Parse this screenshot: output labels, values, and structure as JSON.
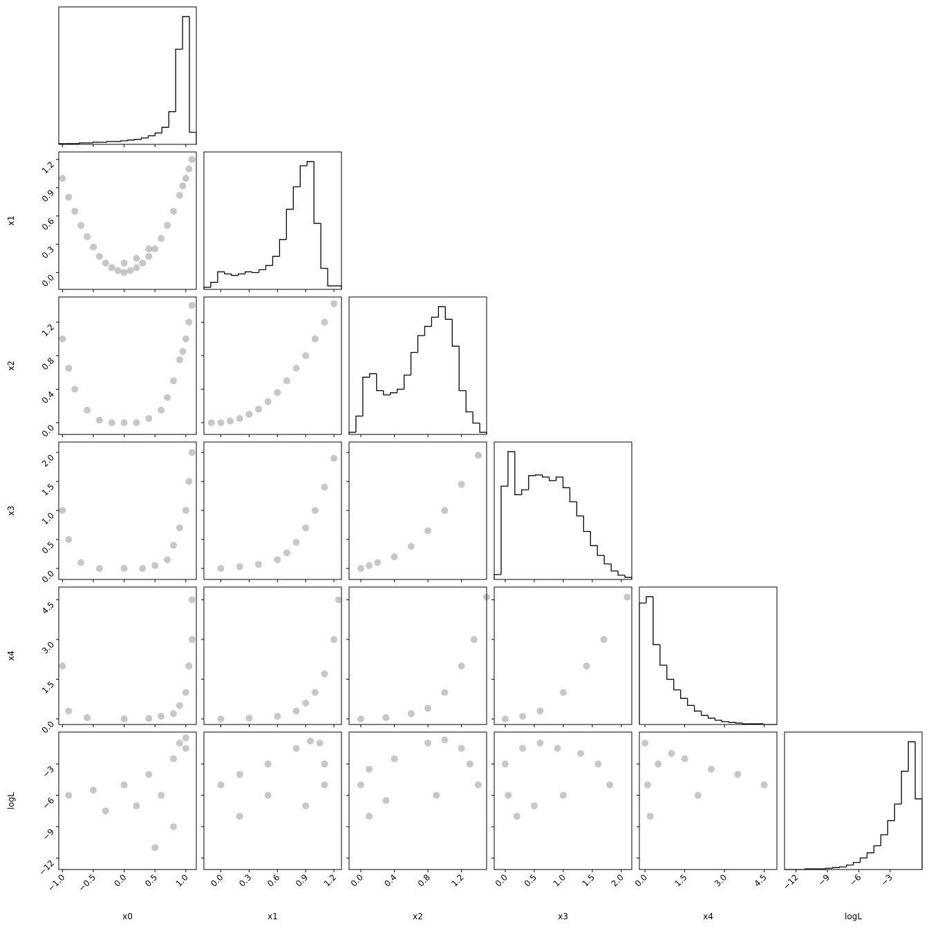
{
  "chart_data": {
    "type": "corner",
    "variables": [
      {
        "name": "x0",
        "lim": [
          -1.06,
          1.17
        ],
        "ticks": [
          {
            "value": -1,
            "label": "−1.0"
          },
          {
            "value": -0.5,
            "label": "−0.5"
          },
          {
            "value": 0,
            "label": "0.0"
          },
          {
            "value": 0.5,
            "label": "0.5"
          },
          {
            "value": 1,
            "label": "1.0"
          }
        ]
      },
      {
        "name": "x1",
        "lim": [
          -0.18,
          1.28
        ],
        "ticks": [
          {
            "value": 0,
            "label": "0.0"
          },
          0.3,
          0.6,
          0.9,
          1.2
        ]
      },
      {
        "name": "x2",
        "lim": [
          -0.14,
          1.5
        ],
        "ticks": [
          {
            "value": 0,
            "label": "0.0"
          },
          0.4,
          0.8,
          1.2
        ]
      },
      {
        "name": "x3",
        "lim": [
          -0.19,
          2.18
        ],
        "ticks": [
          {
            "value": 0,
            "label": "0.0"
          },
          0.5,
          {
            "value": 1,
            "label": "1.0"
          },
          1.5,
          {
            "value": 2,
            "label": "2.0"
          }
        ]
      },
      {
        "name": "x4",
        "lim": [
          -0.21,
          4.98
        ],
        "ticks": [
          {
            "value": 0,
            "label": "0.0"
          },
          1.5,
          {
            "value": 3,
            "label": "3.0"
          },
          4.5
        ]
      },
      {
        "name": "logL",
        "lim": [
          -13.1,
          0.05
        ],
        "ticks": [
          {
            "value": -12,
            "label": "−12"
          },
          {
            "value": -9,
            "label": "−9"
          },
          {
            "value": -6,
            "label": "−6"
          },
          {
            "value": -3,
            "label": "−3"
          }
        ]
      }
    ],
    "histograms": [
      {
        "bins": [
          -1.06,
          -0.9485,
          -0.837,
          -0.7255,
          -0.614,
          -0.5025,
          -0.391,
          -0.2795,
          -0.168,
          -0.0565,
          0.055,
          0.1665,
          0.278,
          0.3895,
          0.501,
          0.6125,
          0.724,
          0.8355,
          0.947,
          1.0585,
          1.17
        ],
        "values": [
          1,
          1,
          1,
          2,
          2,
          3,
          3,
          4,
          4,
          5,
          6,
          7,
          9,
          12,
          16,
          24,
          46,
          134,
          180,
          17
        ]
      },
      {
        "bins": [
          -0.18,
          -0.107,
          -0.034,
          0.039,
          0.112,
          0.185,
          0.258,
          0.331,
          0.404,
          0.477,
          0.55,
          0.623,
          0.696,
          0.769,
          0.842,
          0.915,
          0.988,
          1.061,
          1.134,
          1.207,
          1.28
        ],
        "values": [
          3,
          10,
          25,
          22,
          20,
          22,
          25,
          24,
          28,
          34,
          47,
          71,
          114,
          146,
          176,
          182,
          94,
          30,
          5,
          5
        ]
      },
      {
        "bins": [
          -0.14,
          -0.058,
          0.024,
          0.106,
          0.188,
          0.27,
          0.352,
          0.434,
          0.516,
          0.598,
          0.68,
          0.762,
          0.844,
          0.926,
          1.008,
          1.09,
          1.172,
          1.254,
          1.336,
          1.418,
          1.5
        ],
        "values": [
          3,
          26,
          81,
          86,
          62,
          56,
          59,
          64,
          84,
          116,
          140,
          153,
          166,
          181,
          163,
          125,
          62,
          32,
          16,
          3
        ]
      },
      {
        "bins": [
          -0.19,
          -0.0715,
          0.047,
          0.1655,
          0.284,
          0.4025,
          0.521,
          0.6395,
          0.758,
          0.8765,
          0.995,
          1.1135,
          1.232,
          1.3505,
          1.469,
          1.5875,
          1.706,
          1.8245,
          1.943,
          2.0615,
          2.18
        ],
        "values": [
          7,
          132,
          181,
          120,
          127,
          147,
          148,
          145,
          140,
          145,
          130,
          110,
          90,
          68,
          48,
          34,
          22,
          12,
          6,
          3
        ]
      },
      {
        "bins": [
          -0.21,
          0.0495,
          0.309,
          0.5685,
          0.828,
          1.0875,
          1.347,
          1.6065,
          1.866,
          2.1255,
          2.385,
          2.6445,
          2.904,
          3.1635,
          3.423,
          3.6825,
          3.942,
          4.2015,
          4.461,
          4.7205,
          4.98
        ],
        "values": [
          172,
          181,
          113,
          84,
          64,
          49,
          37,
          27,
          19,
          13,
          9,
          6,
          4,
          3,
          2,
          1,
          1,
          1,
          0,
          0
        ]
      },
      {
        "bins": [
          -13.1,
          -12.4425,
          -11.785,
          -11.1275,
          -10.47,
          -9.8125,
          -9.155,
          -8.4975,
          -7.84,
          -7.1825,
          -6.525,
          -5.8675,
          -5.21,
          -4.5525,
          -3.895,
          -3.2375,
          -2.58,
          -1.9225,
          -1.265,
          -0.6075,
          0.05
        ],
        "values": [
          0,
          0,
          0,
          1,
          1,
          1,
          2,
          3,
          4,
          7,
          11,
          18,
          26,
          37,
          54,
          76,
          102,
          153,
          199,
          110
        ]
      }
    ],
    "scatter": [
      {
        "x": [
          -1.0,
          -0.9,
          -0.8,
          -0.7,
          -0.6,
          -0.5,
          -0.4,
          -0.3,
          -0.2,
          -0.1,
          0.0,
          0.1,
          0.2,
          0.3,
          0.4,
          0.5,
          0.6,
          0.7,
          0.8,
          0.9,
          0.95,
          1.0,
          1.05,
          1.1,
          0.0,
          0.2,
          0.4
        ],
        "y": [
          1.0,
          0.8,
          0.65,
          0.5,
          0.38,
          0.27,
          0.17,
          0.1,
          0.05,
          0.02,
          0.0,
          0.02,
          0.05,
          0.1,
          0.17,
          0.25,
          0.36,
          0.5,
          0.65,
          0.82,
          0.92,
          1.0,
          1.1,
          1.2,
          0.1,
          0.15,
          0.25
        ]
      },
      {
        "x": [
          -1.0,
          -0.9,
          -0.8,
          -0.6,
          -0.4,
          -0.2,
          0.0,
          0.2,
          0.4,
          0.6,
          0.7,
          0.8,
          0.9,
          1.0,
          1.05,
          1.1,
          0.95
        ],
        "y": [
          1.0,
          0.65,
          0.4,
          0.15,
          0.03,
          0.0,
          0.0,
          0.0,
          0.05,
          0.15,
          0.3,
          0.5,
          0.75,
          1.0,
          1.2,
          1.4,
          0.85
        ]
      },
      {
        "x": [
          0,
          0.1,
          0.2,
          0.3,
          0.4,
          0.5,
          0.6,
          0.7,
          0.8,
          0.9,
          1.0,
          1.1,
          1.2,
          -0.1
        ],
        "y": [
          0,
          0.02,
          0.05,
          0.1,
          0.16,
          0.25,
          0.36,
          0.5,
          0.65,
          0.8,
          1.0,
          1.2,
          1.42,
          0.0
        ]
      },
      {
        "x": [
          -1,
          -0.9,
          -0.7,
          -0.4,
          0,
          0.3,
          0.5,
          0.7,
          0.8,
          0.9,
          1.0,
          1.05,
          1.1
        ],
        "y": [
          1.0,
          0.5,
          0.1,
          0.0,
          0,
          0,
          0.05,
          0.15,
          0.4,
          0.7,
          1.0,
          1.5,
          2.0
        ]
      },
      {
        "x": [
          0,
          0.2,
          0.4,
          0.6,
          0.7,
          0.8,
          0.9,
          1.0,
          1.1,
          1.2
        ],
        "y": [
          0,
          0.03,
          0.07,
          0.15,
          0.27,
          0.45,
          0.7,
          1.0,
          1.4,
          1.9
        ]
      },
      {
        "x": [
          0,
          0.1,
          0.2,
          0.4,
          0.6,
          0.8,
          1.0,
          1.2,
          1.4
        ],
        "y": [
          0,
          0.05,
          0.1,
          0.2,
          0.38,
          0.65,
          1.0,
          1.45,
          1.95
        ]
      },
      {
        "x": [
          -1,
          -0.9,
          -0.6,
          0,
          0.4,
          0.6,
          0.8,
          0.9,
          1.0,
          1.05,
          1.1,
          1.1
        ],
        "y": [
          2.0,
          0.3,
          0.05,
          0,
          0.02,
          0.1,
          0.2,
          0.5,
          1.0,
          2.0,
          3.0,
          4.5
        ]
      },
      {
        "x": [
          0,
          0.3,
          0.6,
          0.8,
          0.9,
          1.0,
          1.1,
          1.2,
          1.25
        ],
        "y": [
          0,
          0.03,
          0.1,
          0.3,
          0.6,
          1.0,
          1.7,
          3.0,
          4.5
        ]
      },
      {
        "x": [
          0,
          0.3,
          0.6,
          0.8,
          1.0,
          1.2,
          1.35,
          1.5
        ],
        "y": [
          0,
          0.05,
          0.2,
          0.4,
          1.0,
          2.0,
          3.0,
          4.6
        ]
      },
      {
        "x": [
          0,
          0.3,
          0.6,
          1.0,
          1.4,
          1.7,
          2.1
        ],
        "y": [
          0,
          0.1,
          0.3,
          1.0,
          2.0,
          3.0,
          4.6
        ]
      },
      {
        "x": [
          -0.9,
          -0.5,
          0,
          0.4,
          0.8,
          0.9,
          1.0,
          1.0,
          0.6,
          0.2,
          -0.3,
          0.8,
          0.5
        ],
        "y": [
          -6,
          -5.5,
          -5,
          -4,
          -2.5,
          -1,
          -0.5,
          -1.5,
          -6,
          -7,
          -7.5,
          -9,
          -11
        ]
      },
      {
        "x": [
          0,
          0.2,
          0.5,
          0.8,
          0.95,
          1.05,
          1.1,
          0.5,
          0.9,
          0.2,
          1.1
        ],
        "y": [
          -5,
          -4,
          -3,
          -1.5,
          -0.8,
          -1,
          -3,
          -6,
          -7,
          -8,
          -5
        ]
      },
      {
        "x": [
          0,
          0.1,
          0.4,
          0.8,
          1.0,
          1.2,
          1.3,
          0.3,
          0.9,
          1.4,
          0.1
        ],
        "y": [
          -5,
          -3.5,
          -2.5,
          -1,
          -0.7,
          -1.5,
          -3,
          -6.5,
          -6,
          -5,
          -8
        ]
      },
      {
        "x": [
          0,
          0.05,
          0.2,
          0.3,
          0.6,
          0.9,
          1.3,
          1.6,
          1.8,
          1.0,
          0.5
        ],
        "y": [
          -3,
          -6,
          -8,
          -1.5,
          -1,
          -1.5,
          -2,
          -3,
          -5,
          -6,
          -7
        ]
      },
      {
        "x": [
          0,
          0.1,
          0.2,
          0.5,
          1.0,
          1.5,
          2.5,
          3.5,
          4.5,
          2
        ],
        "y": [
          -1,
          -5,
          -8,
          -3,
          -2,
          -2.5,
          -3.5,
          -4,
          -5,
          -6
        ]
      }
    ]
  }
}
